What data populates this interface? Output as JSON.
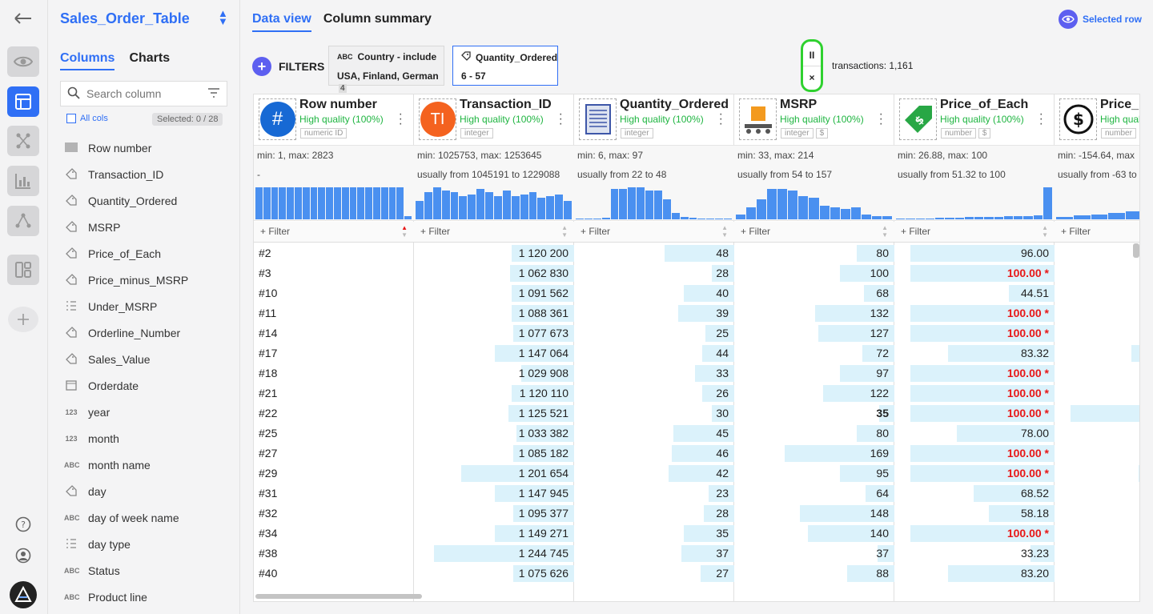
{
  "rail": {
    "items": [
      "back-icon",
      "eye-icon",
      "table-icon",
      "flow-icon",
      "chart-icon",
      "graph-icon",
      "dashboard-icon",
      "add-icon",
      "help-icon",
      "user-icon",
      "logo-icon"
    ]
  },
  "sidebar": {
    "title": "Sales_Order_Table",
    "tabs": [
      "Columns",
      "Charts"
    ],
    "search_placeholder": "Search column",
    "all_cols": "All cols",
    "selected": "Selected: 0 / 28",
    "columns": [
      {
        "type": "#",
        "name": "Row number"
      },
      {
        "type": "tag",
        "name": "Transaction_ID"
      },
      {
        "type": "tag",
        "name": "Quantity_Ordered"
      },
      {
        "type": "tag",
        "name": "MSRP"
      },
      {
        "type": "tag",
        "name": "Price_of_Each"
      },
      {
        "type": "tag",
        "name": "Price_minus_MSRP"
      },
      {
        "type": "list",
        "name": "Under_MSRP"
      },
      {
        "type": "tag",
        "name": "Orderline_Number"
      },
      {
        "type": "tag",
        "name": "Sales_Value"
      },
      {
        "type": "cal",
        "name": "Orderdate"
      },
      {
        "type": "123",
        "name": "year"
      },
      {
        "type": "123",
        "name": "month"
      },
      {
        "type": "ABC",
        "name": "month name"
      },
      {
        "type": "tag",
        "name": "day"
      },
      {
        "type": "ABC",
        "name": "day of week name"
      },
      {
        "type": "list",
        "name": "day type"
      },
      {
        "type": "ABC",
        "name": "Status"
      },
      {
        "type": "ABC",
        "name": "Product line"
      }
    ]
  },
  "main": {
    "tabs": [
      "Data view",
      "Column summary"
    ],
    "selected_row": "Selected row",
    "filters_label": "FILTERS",
    "filter1": {
      "title": "Country - include",
      "value": "USA, Finland, German",
      "count": "4"
    },
    "filter2": {
      "title": "Quantity_Ordered",
      "value": "6 - 57"
    },
    "pause_label": "II",
    "close_label": "×",
    "transactions": "transactions: 1,161"
  },
  "grid": {
    "filter_label": "+ Filter",
    "columns": [
      {
        "name": "Row number",
        "quality": "High quality (100%)",
        "types": [
          "numeric ID"
        ],
        "icon": "hash-icon",
        "stat1": "min: 1, max: 2823",
        "stat2": "-",
        "hist": [
          0.95,
          0.95,
          0.95,
          0.95,
          0.95,
          0.95,
          0.95,
          0.95,
          0.95,
          0.95,
          0.95,
          0.95,
          0.95,
          0.95,
          0.95,
          0.95,
          0.95,
          0.95,
          0.95,
          0.1
        ]
      },
      {
        "name": "Transaction_ID",
        "quality": "High quality (100%)",
        "types": [
          "integer"
        ],
        "icon": "ti-icon",
        "stat1": "min: 1025753, max: 1253645",
        "stat2": "usually from 1045191 to 1229088",
        "hist": [
          0.55,
          0.8,
          0.95,
          0.85,
          0.8,
          0.7,
          0.75,
          0.9,
          0.8,
          0.7,
          0.85,
          0.7,
          0.75,
          0.8,
          0.65,
          0.7,
          0.75,
          0.55
        ]
      },
      {
        "name": "Quantity_Ordered",
        "quality": "High quality (100%)",
        "types": [
          "integer"
        ],
        "icon": "document-icon",
        "stat1": "min: 6, max: 97",
        "stat2": "usually from 22 to 48",
        "hist": [
          0,
          0,
          0,
          0.05,
          0.9,
          0.9,
          0.95,
          0.95,
          0.85,
          0.85,
          0.6,
          0.2,
          0.08,
          0.05,
          0.03,
          0,
          0,
          0.02
        ]
      },
      {
        "name": "MSRP",
        "quality": "High quality (100%)",
        "types": [
          "integer",
          "$"
        ],
        "icon": "conveyor-icon",
        "stat1": "min: 33, max: 214",
        "stat2": "usually from 54 to 157",
        "hist": [
          0.15,
          0.35,
          0.6,
          0.9,
          0.9,
          0.85,
          0.7,
          0.65,
          0.4,
          0.35,
          0.3,
          0.35,
          0.15,
          0.1,
          0.1
        ]
      },
      {
        "name": "Price_of_Each",
        "quality": "High quality (100%)",
        "types": [
          "number",
          "$"
        ],
        "icon": "price-tag-icon",
        "stat1": "min: 26.88, max: 100",
        "stat2": "usually from 51.32 to 100",
        "hist": [
          0.01,
          0.02,
          0.03,
          0.03,
          0.04,
          0.05,
          0.05,
          0.06,
          0.07,
          0.07,
          0.08,
          0.09,
          0.1,
          0.1,
          0.11,
          0.95
        ]
      },
      {
        "name": "Price_m",
        "quality": "High qual",
        "types": [
          "number"
        ],
        "icon": "refresh-dollar-icon",
        "stat1": "min: -154.64, max",
        "stat2": "usually from -63 to",
        "hist": [
          0.08,
          0.12,
          0.15,
          0.2,
          0.25,
          0.3,
          0.4,
          0.5,
          0.95
        ]
      }
    ],
    "rows": [
      {
        "id": "#2",
        "t": "1 120 200",
        "tf": 0.41,
        "q": "48",
        "qf": 0.46,
        "m": "80",
        "mf": 0.25,
        "p": "96.00",
        "pf": 0.95,
        "pr": false,
        "x": 0.46,
        "mb": false
      },
      {
        "id": "#3",
        "t": "1 062 830",
        "tf": 0.42,
        "q": "28",
        "qf": 0.15,
        "m": "100",
        "mf": 0.36,
        "p": "100.00 *",
        "pf": 0.95,
        "pr": true,
        "x": 0.42,
        "mb": false
      },
      {
        "id": "#10",
        "t": "1 091 562",
        "tf": 0.41,
        "q": "40",
        "qf": 0.33,
        "m": "68",
        "mf": 0.2,
        "p": "44.51",
        "pf": 0.3,
        "pr": false,
        "x": 0.17,
        "mb": false
      },
      {
        "id": "#11",
        "t": "1 088 361",
        "tf": 0.41,
        "q": "39",
        "qf": 0.37,
        "m": "132",
        "mf": 0.52,
        "p": "100.00 *",
        "pf": 0.95,
        "pr": true,
        "x": 0.12,
        "mb": false
      },
      {
        "id": "#14",
        "t": "1 077 673",
        "tf": 0.4,
        "q": "25",
        "qf": 0.19,
        "m": "127",
        "mf": 0.5,
        "p": "100.00 *",
        "pf": 0.95,
        "pr": true,
        "x": 0.17,
        "mb": false
      },
      {
        "id": "#17",
        "t": "1 147 064",
        "tf": 0.52,
        "q": "44",
        "qf": 0.21,
        "m": "72",
        "mf": 0.21,
        "p": "83.32",
        "pf": 0.7,
        "pr": false,
        "x": 0.55,
        "mb": false
      },
      {
        "id": "#18",
        "t": "1 029 908",
        "tf": 0.35,
        "q": "33",
        "qf": 0.26,
        "m": "97",
        "mf": 0.36,
        "p": "100.00 *",
        "pf": 0.95,
        "pr": true,
        "x": 0.47,
        "mb": false
      },
      {
        "id": "#21",
        "t": "1 120 110",
        "tf": 0.41,
        "q": "26",
        "qf": 0.21,
        "m": "122",
        "mf": 0.47,
        "p": "100.00 *",
        "pf": 0.95,
        "pr": true,
        "x": 0.14,
        "mb": false
      },
      {
        "id": "#22",
        "t": "1 125 521",
        "tf": 0.43,
        "q": "30",
        "qf": 0.15,
        "m": "35",
        "mf": 0.1,
        "p": "100.00 *",
        "pf": 0.95,
        "pr": true,
        "x": 0.95,
        "mb": true
      },
      {
        "id": "#25",
        "t": "1 033 382",
        "tf": 0.38,
        "q": "45",
        "qf": 0.4,
        "m": "80",
        "mf": 0.25,
        "p": "78.00",
        "pf": 0.64,
        "pr": false,
        "x": 0.3,
        "mb": false
      },
      {
        "id": "#27",
        "t": "1 085 182",
        "tf": 0.4,
        "q": "46",
        "qf": 0.41,
        "m": "169",
        "mf": 0.72,
        "p": "100.00 *",
        "pf": 0.95,
        "pr": true,
        "x": 0.17,
        "mb": false
      },
      {
        "id": "#29",
        "t": "1 201 654",
        "tf": 0.74,
        "q": "42",
        "qf": 0.43,
        "m": "95",
        "mf": 0.36,
        "p": "100.00 *",
        "pf": 0.95,
        "pr": true,
        "x": 0.5,
        "mb": false
      },
      {
        "id": "#31",
        "t": "1 147 945",
        "tf": 0.52,
        "q": "23",
        "qf": 0.17,
        "m": "64",
        "mf": 0.19,
        "p": "68.52",
        "pf": 0.53,
        "pr": false,
        "x": 0.37,
        "mb": false
      },
      {
        "id": "#32",
        "t": "1 095 377",
        "tf": 0.4,
        "q": "28",
        "qf": 0.2,
        "m": "148",
        "mf": 0.62,
        "p": "58.18",
        "pf": 0.43,
        "pr": false,
        "x": 0.31,
        "mb": false
      },
      {
        "id": "#34",
        "t": "1 149 271",
        "tf": 0.52,
        "q": "35",
        "qf": 0.33,
        "m": "140",
        "mf": 0.57,
        "p": "100.00 *",
        "pf": 0.95,
        "pr": true,
        "x": 0.15,
        "mb": false
      },
      {
        "id": "#38",
        "t": "1 244 745",
        "tf": 0.92,
        "q": "37",
        "qf": 0.35,
        "m": "37",
        "mf": 0.11,
        "p": "33.23",
        "pf": 0.16,
        "pr": false,
        "x": 0.42,
        "mb": false
      },
      {
        "id": "#40",
        "t": "1 075 626",
        "tf": 0.4,
        "q": "27",
        "qf": 0.22,
        "m": "88",
        "mf": 0.31,
        "p": "83.20",
        "pf": 0.7,
        "pr": false,
        "x": 0.3,
        "mb": false
      }
    ]
  }
}
